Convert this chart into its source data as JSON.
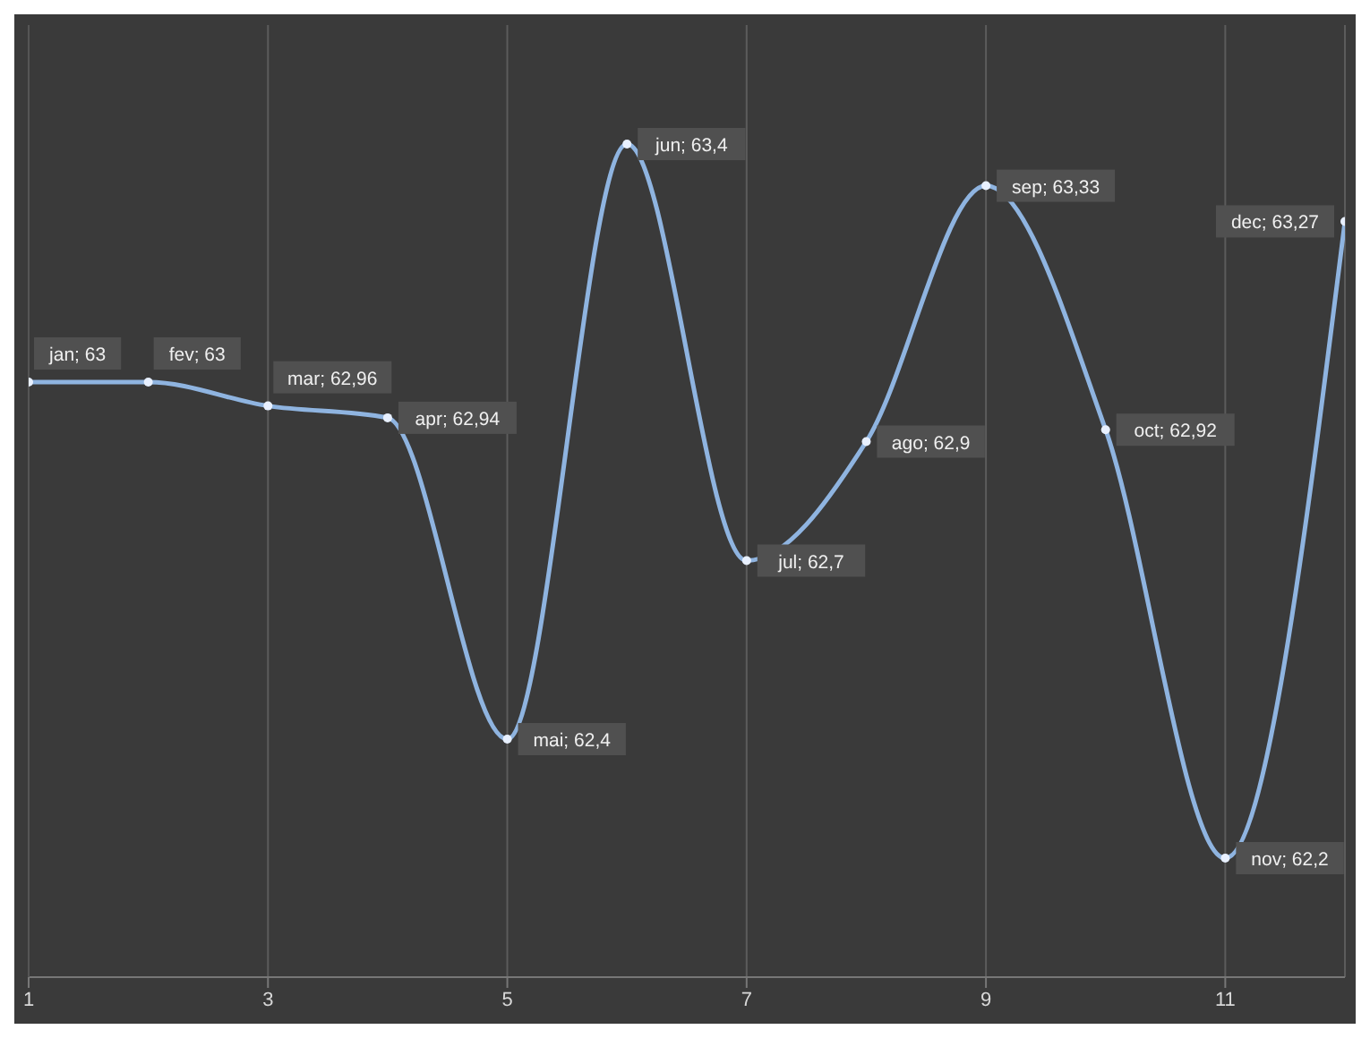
{
  "chart_data": {
    "type": "line",
    "x": [
      1,
      2,
      3,
      4,
      5,
      6,
      7,
      8,
      9,
      10,
      11,
      12
    ],
    "series": [
      {
        "color": "#8fb4e0",
        "values": [
          63,
          63,
          62.96,
          62.94,
          62.4,
          63.4,
          62.7,
          62.9,
          63.33,
          62.92,
          62.2,
          63.27
        ],
        "value_labels": [
          "jan; 63",
          "fev; 63",
          "mar; 62,96",
          "apr; 62,94",
          "mai; 62,4",
          "jun; 63,4",
          "jul; 62,7",
          "ago; 62,9",
          "sep; 63,33",
          "oct; 62,92",
          "nov; 62,2",
          "dec; 63,27"
        ]
      }
    ],
    "xlim": [
      1,
      12
    ],
    "xticks": [
      1,
      3,
      5,
      7,
      9,
      11
    ],
    "ylim": [
      62,
      63.6
    ],
    "tick_labels": "x",
    "grid": "x",
    "marker": "circle",
    "line_style": "solid",
    "legend": false
  }
}
